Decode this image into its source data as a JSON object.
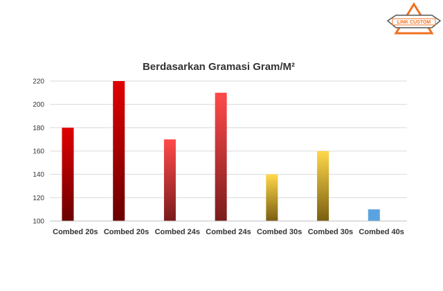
{
  "logo": {
    "text": "LINK CUSTOM",
    "accent": "#f07020",
    "outline": "#555555"
  },
  "chart_data": {
    "type": "bar",
    "title": "Berdasarkan Gramasi Gram/M²",
    "xlabel": "",
    "ylabel": "",
    "ylim": [
      100,
      220
    ],
    "yticks": [
      100,
      120,
      140,
      160,
      180,
      200,
      220
    ],
    "grid": true,
    "legend": "none",
    "categories": [
      "Combed 20s",
      "Combed 20s",
      "Combed 24s",
      "Combed 24s",
      "Combed 30s",
      "Combed 30s",
      "Combed 40s"
    ],
    "values": [
      180,
      220,
      170,
      210,
      140,
      160,
      110
    ],
    "bar_colors": [
      [
        "#e00000",
        "#6a0000"
      ],
      [
        "#e00000",
        "#6a0000"
      ],
      [
        "#ff4a4a",
        "#7a1c1c"
      ],
      [
        "#ff4a4a",
        "#7a1c1c"
      ],
      [
        "#ffd84a",
        "#7a5e10"
      ],
      [
        "#ffd84a",
        "#7a5e10"
      ],
      [
        "#5aa3e0",
        "#5aa3e0"
      ]
    ],
    "grid_color": "#d9d9d9",
    "axis_color": "#bfbfbf"
  }
}
